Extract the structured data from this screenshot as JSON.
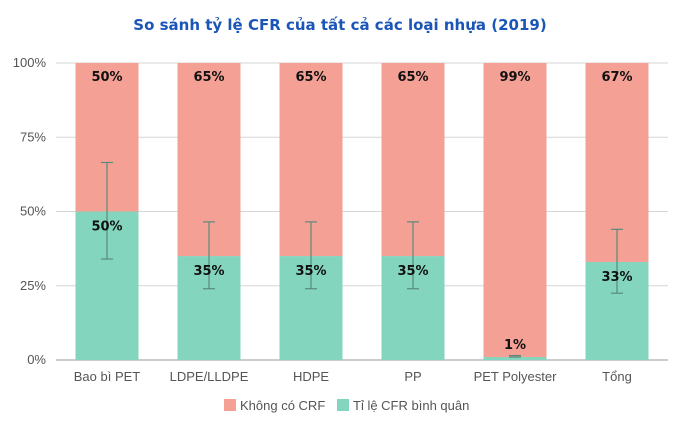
{
  "chart_data": {
    "type": "bar",
    "stacked": "percent",
    "title": "So sánh tỷ lệ CFR của tất cả các loại nhựa (2019)",
    "categories": [
      "Bao bì PET",
      "LDPE/LLDPE",
      "HDPE",
      "PP",
      "PET Polyester",
      "Tổng"
    ],
    "series": [
      {
        "name": "Tỉ lệ CFR bình quân",
        "color": "#83d5bd",
        "values": [
          50,
          35,
          35,
          35,
          1,
          33
        ],
        "labels": [
          "50%",
          "35%",
          "35%",
          "35%",
          "1%",
          "33%"
        ],
        "error_low": [
          34,
          24,
          24,
          24,
          1,
          22.5
        ],
        "error_high": [
          66.5,
          46.5,
          46.5,
          46.5,
          1.5,
          44
        ]
      },
      {
        "name": "Không có CRF",
        "color": "#f4a095",
        "values": [
          50,
          65,
          65,
          65,
          99,
          67
        ],
        "labels": [
          "50%",
          "65%",
          "65%",
          "65%",
          "99%",
          "67%"
        ]
      }
    ],
    "y_ticks": [
      "0%",
      "25%",
      "50%",
      "75%",
      "100%"
    ],
    "ylim": [
      0,
      100
    ],
    "grid": true,
    "legend_position": "bottom",
    "legend_order": [
      "Không có CRF",
      "Tỉ lệ CFR bình quân"
    ],
    "error_bar_color": "#5a8a7a"
  }
}
